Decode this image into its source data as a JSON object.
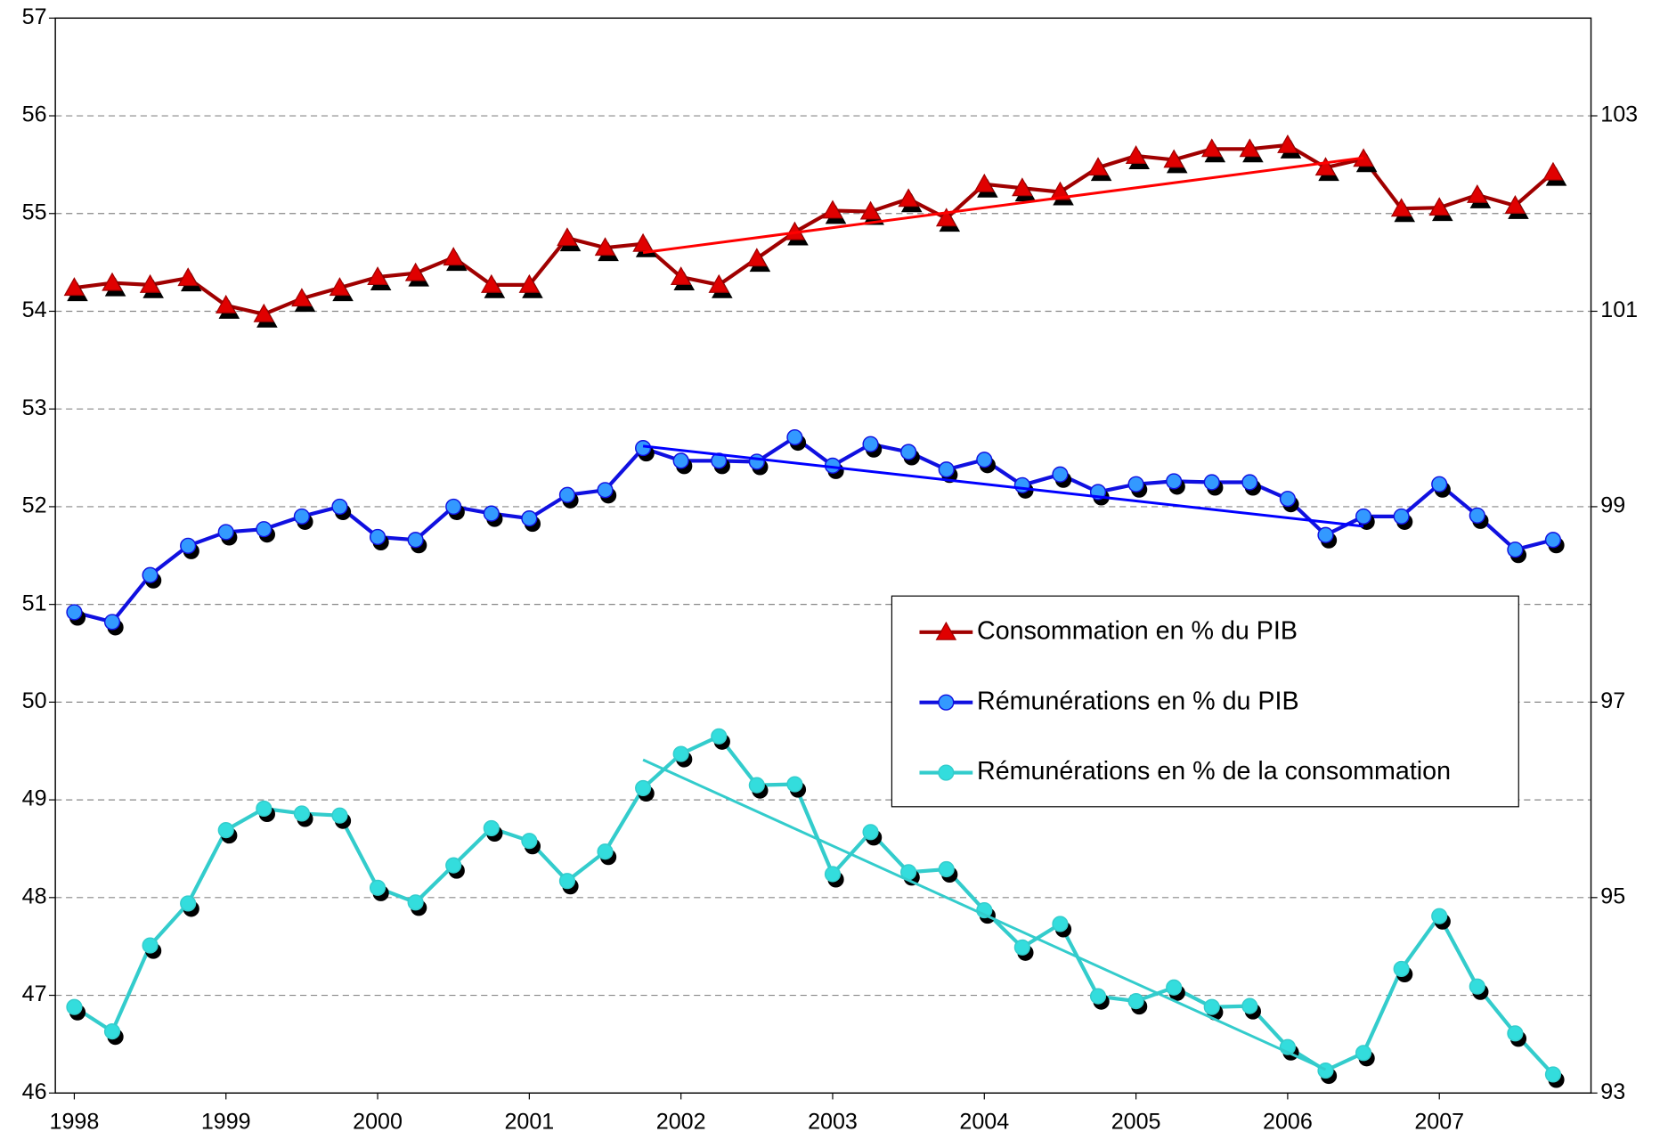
{
  "chart_data": {
    "type": "line",
    "x": [
      1998,
      1998.25,
      1998.5,
      1998.75,
      1999,
      1999.25,
      1999.5,
      1999.75,
      2000,
      2000.25,
      2000.5,
      2000.75,
      2001,
      2001.25,
      2001.5,
      2001.75,
      2002,
      2002.25,
      2002.5,
      2002.75,
      2003,
      2003.25,
      2003.5,
      2003.75,
      2004,
      2004.25,
      2004.5,
      2004.75,
      2005,
      2005.25,
      2005.5,
      2005.75,
      2006,
      2006.25,
      2006.5,
      2006.75,
      2007,
      2007.25,
      2007.5,
      2007.75
    ],
    "xlim": [
      1997.875,
      2008
    ],
    "xticks": [
      1998,
      1999,
      2000,
      2001,
      2002,
      2003,
      2004,
      2005,
      2006,
      2007
    ],
    "ylim": [
      46,
      57
    ],
    "yticks": [
      46,
      47,
      48,
      49,
      50,
      51,
      52,
      53,
      54,
      55,
      56,
      57
    ],
    "y2lim": [
      93,
      104
    ],
    "y2ticks": [
      93,
      95,
      97,
      99,
      101,
      103
    ],
    "grid": true,
    "legend": "right",
    "series": [
      {
        "name": "Consommation en % du PIB",
        "color": "#a00000",
        "marker": "triangle",
        "marker_color": "#e00000",
        "values": [
          54.24,
          54.29,
          54.27,
          54.34,
          54.06,
          53.97,
          54.13,
          54.24,
          54.35,
          54.39,
          54.55,
          54.27,
          54.27,
          54.75,
          54.65,
          54.69,
          54.35,
          54.27,
          54.54,
          54.81,
          55.03,
          55.02,
          55.15,
          54.95,
          55.3,
          55.26,
          55.22,
          55.47,
          55.59,
          55.55,
          55.66,
          55.66,
          55.7,
          55.47,
          55.56,
          55.05,
          55.06,
          55.19,
          55.08,
          55.42
        ],
        "trend": {
          "color": "#ff0000",
          "x": [
            2001.75,
            2006.5
          ],
          "values": [
            54.6,
            55.57
          ]
        }
      },
      {
        "name": "Rémunérations en % du PIB",
        "color": "#1010e0",
        "marker": "circle",
        "marker_color": "#3399ff",
        "values": [
          50.92,
          50.82,
          51.3,
          51.6,
          51.74,
          51.77,
          51.9,
          52.0,
          51.69,
          51.66,
          52.0,
          51.93,
          51.88,
          52.12,
          52.17,
          52.6,
          52.47,
          52.47,
          52.46,
          52.71,
          52.42,
          52.64,
          52.56,
          52.38,
          52.48,
          52.22,
          52.33,
          52.15,
          52.23,
          52.26,
          52.25,
          52.25,
          52.08,
          51.71,
          51.9,
          51.9,
          52.23,
          51.91,
          51.56,
          51.66
        ],
        "trend": {
          "color": "#0000ff",
          "x": [
            2001.75,
            2006.5
          ],
          "values": [
            52.62,
            51.8
          ]
        }
      },
      {
        "name": "Rémunérations en % de la consommation",
        "color": "#33cccc",
        "marker": "circle",
        "marker_color": "#33dddd",
        "axis": "y2",
        "values": [
          93.88,
          93.63,
          94.51,
          94.94,
          95.69,
          95.91,
          95.86,
          95.84,
          95.1,
          94.95,
          95.33,
          95.71,
          95.58,
          95.17,
          95.47,
          96.12,
          96.47,
          96.65,
          96.15,
          96.16,
          95.24,
          95.67,
          95.26,
          95.29,
          94.87,
          94.49,
          94.73,
          93.99,
          93.94,
          94.08,
          93.88,
          93.89,
          93.47,
          93.23,
          93.41,
          94.27,
          94.81,
          94.09,
          93.61,
          93.19
        ],
        "trend": {
          "color": "#33cccc",
          "x": [
            2001.75,
            2006.25
          ],
          "values": [
            96.41,
            93.24
          ]
        }
      }
    ]
  }
}
